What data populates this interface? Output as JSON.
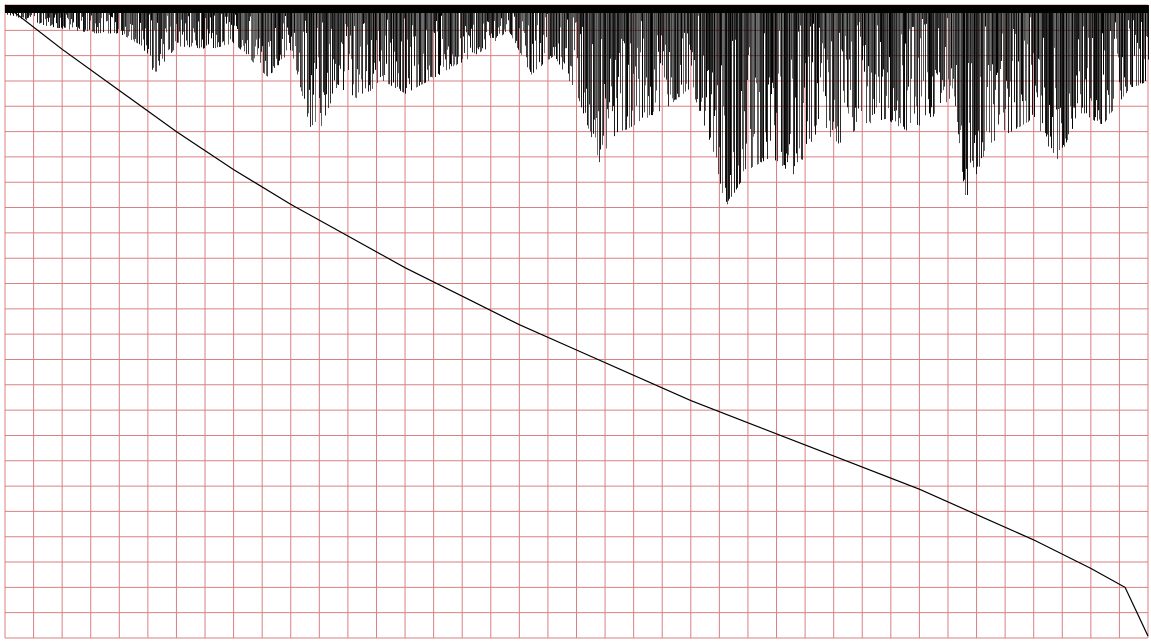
{
  "chart_data": {
    "type": "scatter",
    "title": "",
    "xlabel": "",
    "ylabel": "",
    "grid": true,
    "legend": "none",
    "grid_divisions": {
      "columns": 40,
      "rows": 25
    },
    "colors": {
      "grid": "#d98080",
      "points": "#000000",
      "curve": "#000000",
      "background": "#ffffff"
    },
    "x_range": [
      0,
      1
    ],
    "y_range": [
      0,
      1
    ],
    "series": [
      {
        "kind": "scatter",
        "points": "dense",
        "upper_band_top": 1.0,
        "envelope": [
          [
            0.0,
            0.985
          ],
          [
            0.02,
            0.975
          ],
          [
            0.04,
            0.965
          ],
          [
            0.06,
            0.96
          ],
          [
            0.08,
            0.955
          ],
          [
            0.1,
            0.955
          ],
          [
            0.12,
            0.935
          ],
          [
            0.13,
            0.89
          ],
          [
            0.15,
            0.935
          ],
          [
            0.18,
            0.93
          ],
          [
            0.2,
            0.94
          ],
          [
            0.23,
            0.885
          ],
          [
            0.25,
            0.93
          ],
          [
            0.27,
            0.78
          ],
          [
            0.29,
            0.87
          ],
          [
            0.31,
            0.85
          ],
          [
            0.33,
            0.88
          ],
          [
            0.35,
            0.86
          ],
          [
            0.38,
            0.89
          ],
          [
            0.4,
            0.91
          ],
          [
            0.42,
            0.93
          ],
          [
            0.44,
            0.96
          ],
          [
            0.46,
            0.89
          ],
          [
            0.48,
            0.92
          ],
          [
            0.5,
            0.86
          ],
          [
            0.52,
            0.75
          ],
          [
            0.53,
            0.79
          ],
          [
            0.56,
            0.82
          ],
          [
            0.58,
            0.84
          ],
          [
            0.6,
            0.87
          ],
          [
            0.62,
            0.765
          ],
          [
            0.63,
            0.68
          ],
          [
            0.65,
            0.74
          ],
          [
            0.67,
            0.76
          ],
          [
            0.69,
            0.73
          ],
          [
            0.71,
            0.8
          ],
          [
            0.73,
            0.78
          ],
          [
            0.75,
            0.81
          ],
          [
            0.77,
            0.82
          ],
          [
            0.79,
            0.8
          ],
          [
            0.81,
            0.82
          ],
          [
            0.83,
            0.86
          ],
          [
            0.84,
            0.69
          ],
          [
            0.86,
            0.78
          ],
          [
            0.88,
            0.8
          ],
          [
            0.9,
            0.82
          ],
          [
            0.92,
            0.75
          ],
          [
            0.94,
            0.83
          ],
          [
            0.96,
            0.81
          ],
          [
            0.98,
            0.86
          ],
          [
            1.0,
            0.88
          ]
        ]
      },
      {
        "kind": "line",
        "points": [
          [
            0.0,
            1.0
          ],
          [
            0.05,
            0.93
          ],
          [
            0.1,
            0.865
          ],
          [
            0.15,
            0.8
          ],
          [
            0.2,
            0.74
          ],
          [
            0.25,
            0.685
          ],
          [
            0.3,
            0.635
          ],
          [
            0.35,
            0.585
          ],
          [
            0.4,
            0.54
          ],
          [
            0.45,
            0.495
          ],
          [
            0.5,
            0.455
          ],
          [
            0.55,
            0.415
          ],
          [
            0.6,
            0.375
          ],
          [
            0.65,
            0.34
          ],
          [
            0.7,
            0.305
          ],
          [
            0.75,
            0.27
          ],
          [
            0.8,
            0.235
          ],
          [
            0.85,
            0.195
          ],
          [
            0.9,
            0.155
          ],
          [
            0.95,
            0.11
          ],
          [
            0.98,
            0.08
          ],
          [
            1.0,
            0.003
          ]
        ]
      }
    ]
  }
}
